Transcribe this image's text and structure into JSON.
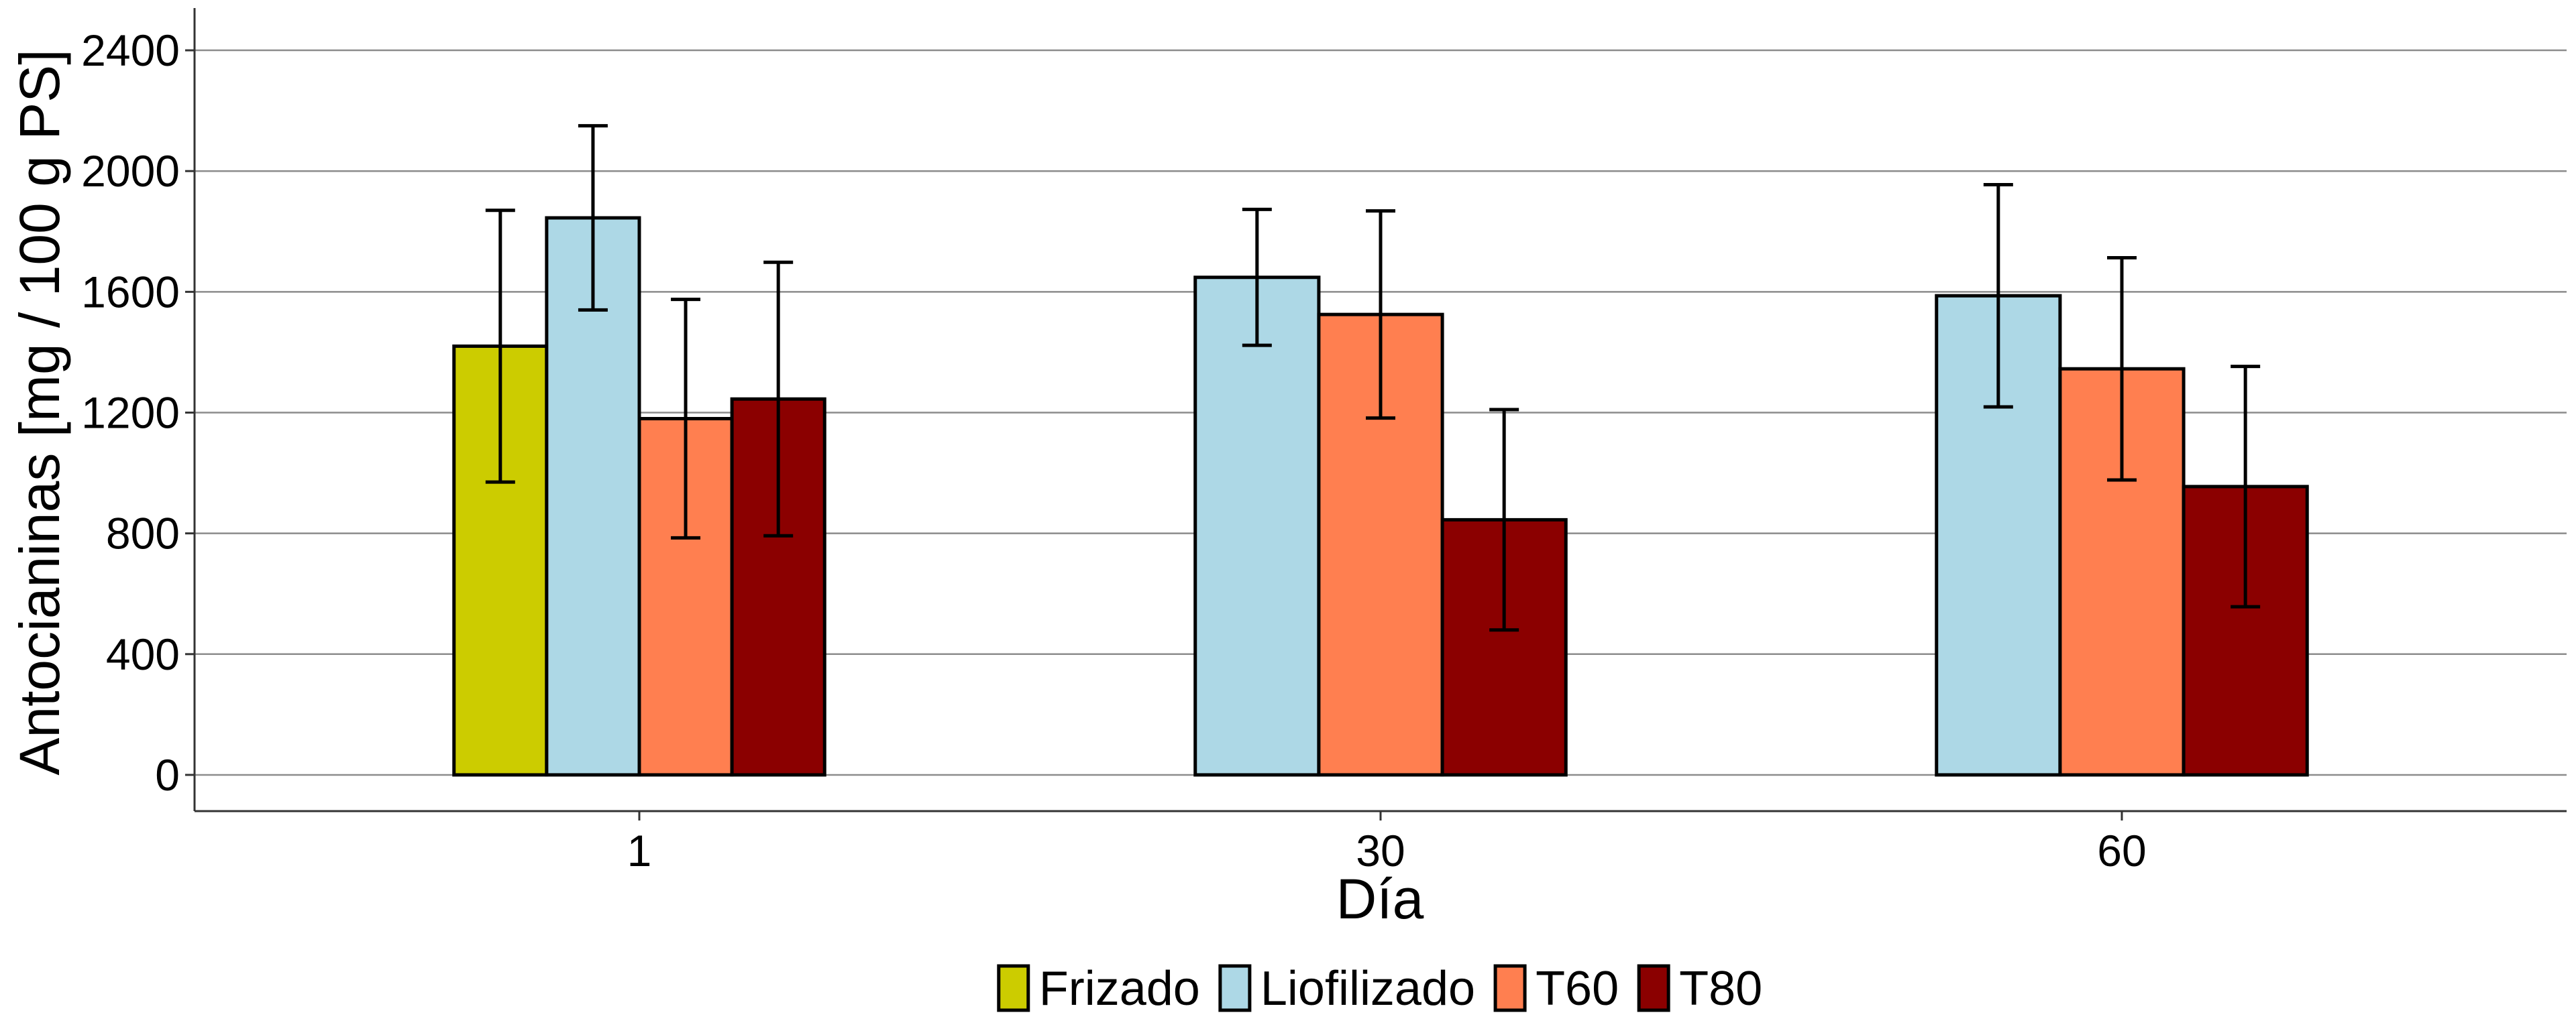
{
  "chart_data": {
    "type": "bar",
    "title": "",
    "xlabel": "Día",
    "ylabel": "Antocianinas [mg / 100 g PS]",
    "categories": [
      "1",
      "30",
      "60"
    ],
    "ylim": [
      -120,
      2540
    ],
    "yticks": [
      0,
      400,
      800,
      1200,
      1600,
      2000,
      2400
    ],
    "grid": "horizontal major lines",
    "legend_position": "bottom",
    "series": [
      {
        "name": "Frizado",
        "color": "#CCCC00",
        "values": [
          1420,
          null,
          null
        ],
        "errors": [
          450,
          null,
          null
        ]
      },
      {
        "name": "Liofilizado",
        "color": "#ADD8E6",
        "values": [
          1845,
          1648,
          1587
        ],
        "errors": [
          305,
          225,
          368
        ]
      },
      {
        "name": "T60",
        "color": "#FF7F50",
        "values": [
          1180,
          1525,
          1345
        ],
        "errors": [
          395,
          343,
          368
        ]
      },
      {
        "name": "T80",
        "color": "#8B0000",
        "values": [
          1245,
          845,
          955
        ],
        "errors": [
          453,
          365,
          398
        ]
      }
    ]
  }
}
